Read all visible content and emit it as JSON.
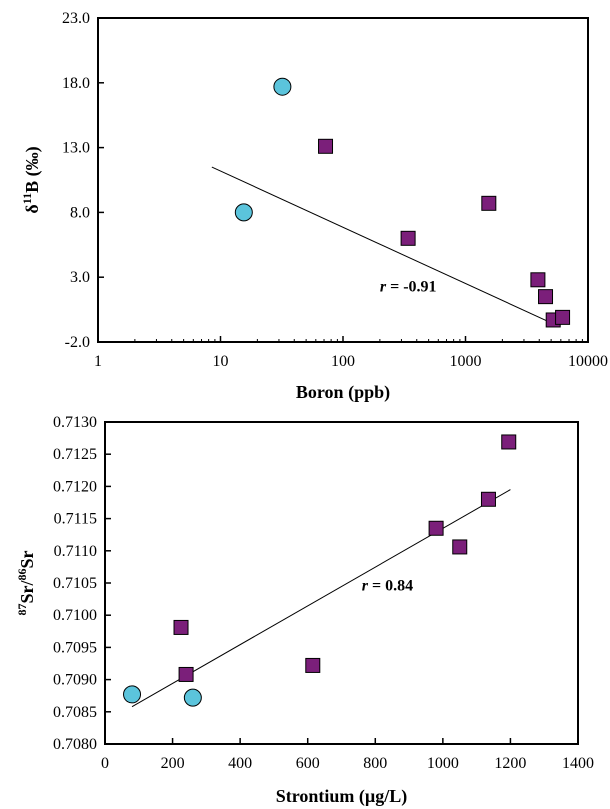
{
  "chart_data": [
    {
      "type": "scatter",
      "xscale": "log",
      "xlim": [
        1,
        10000
      ],
      "ylim": [
        -2.0,
        23.0
      ],
      "x_ticks": [
        1,
        10,
        100,
        1000,
        10000
      ],
      "x_tick_labels": [
        "1",
        "10",
        "100",
        "1000",
        "10000"
      ],
      "y_ticks": [
        -2.0,
        3.0,
        8.0,
        13.0,
        18.0,
        23.0
      ],
      "y_tick_labels": [
        "-2.0",
        "3.0",
        "8.0",
        "13.0",
        "18.0",
        "23.0"
      ],
      "xlabel": "Boron  (ppb)",
      "ylabel_main": "δ",
      "ylabel_sup": "11",
      "ylabel_rest": "B (‰)",
      "grid": false,
      "legend": "none",
      "colors": {
        "circle": "#5bc4dc",
        "square": "#7b1f7a"
      },
      "series": [
        {
          "marker": "circle",
          "x": [
            15.5,
            32
          ],
          "y": [
            8.0,
            17.7
          ]
        },
        {
          "marker": "square",
          "x": [
            72,
            340,
            1550,
            3900,
            4500,
            5200,
            6200
          ],
          "y": [
            13.1,
            6.0,
            8.7,
            2.8,
            1.5,
            -0.3,
            -0.1
          ]
        }
      ],
      "trendline": {
        "x": [
          8.5,
          5800
        ],
        "y": [
          11.5,
          -0.8
        ]
      },
      "annotation": {
        "italic": "r",
        "rest": " = -0.91",
        "x": 200,
        "y": 1.9
      }
    },
    {
      "type": "scatter",
      "xlim": [
        0,
        1400
      ],
      "ylim": [
        0.708,
        0.713
      ],
      "x_ticks": [
        0,
        200,
        400,
        600,
        800,
        1000,
        1200,
        1400
      ],
      "x_tick_labels": [
        "0",
        "200",
        "400",
        "600",
        "800",
        "1000",
        "1200",
        "1400"
      ],
      "y_ticks": [
        0.708,
        0.7085,
        0.709,
        0.7095,
        0.71,
        0.7105,
        0.711,
        0.7115,
        0.712,
        0.7125,
        0.713
      ],
      "y_tick_labels": [
        "0.7080",
        "0.7085",
        "0.7090",
        "0.7095",
        "0.7100",
        "0.7105",
        "0.7110",
        "0.7115",
        "0.7120",
        "0.7125",
        "0.7130"
      ],
      "xlabel": "Strontium  (µg/L)",
      "ylabel_parts": [
        {
          "text": "87",
          "sup": true
        },
        {
          "text": "Sr/",
          "sup": false
        },
        {
          "text": "86",
          "sup": true
        },
        {
          "text": "Sr",
          "sup": false
        }
      ],
      "grid": false,
      "legend": "none",
      "colors": {
        "circle": "#5bc4dc",
        "square": "#7b1f7a"
      },
      "series": [
        {
          "marker": "circle",
          "x": [
            80,
            260
          ],
          "y": [
            0.70877,
            0.70872
          ]
        },
        {
          "marker": "square",
          "x": [
            225,
            240,
            615,
            980,
            1050,
            1135,
            1195
          ],
          "y": [
            0.70981,
            0.70908,
            0.70922,
            0.71135,
            0.71106,
            0.7118,
            0.71269
          ]
        }
      ],
      "trendline": {
        "x": [
          80,
          1200
        ],
        "y": [
          0.70858,
          0.71195
        ]
      },
      "annotation": {
        "italic": "r",
        "rest": " = 0.84",
        "x": 760,
        "y": 0.71038
      }
    }
  ]
}
